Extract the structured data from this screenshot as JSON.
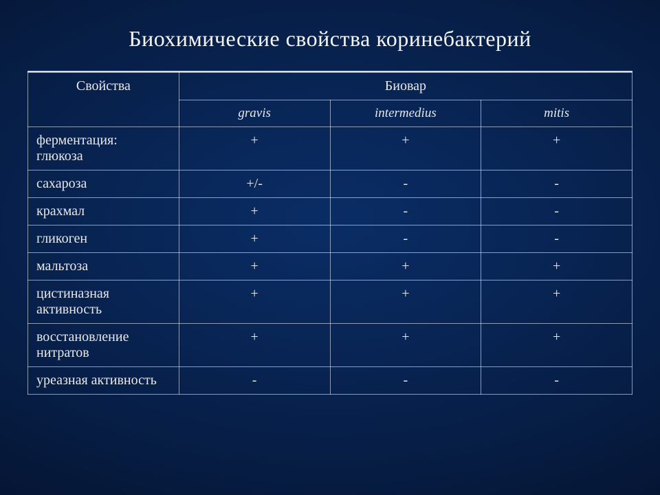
{
  "title": "Биохимические  свойства коринебактерий",
  "table": {
    "type": "table",
    "header": {
      "properties_label": "Свойства",
      "biovar_label": "Биовар",
      "biovars": [
        "gravis",
        "intermedius",
        "mitis"
      ]
    },
    "columns": [
      "Свойства",
      "gravis",
      "intermedius",
      "mitis"
    ],
    "column_widths_pct": [
      25,
      25,
      25,
      25
    ],
    "font_family": "serif",
    "font_size_pt": 15,
    "title_font_size_pt": 24,
    "border_color": "#a9b8cf",
    "text_color": "#e8e8e8",
    "background_gradient": {
      "type": "radial",
      "center": "#0a2d66",
      "mid": "#071f48",
      "edge": "#010510"
    },
    "rows": [
      {
        "label": "ферментация:\nглюкоза",
        "values": [
          "+",
          "+",
          "+"
        ]
      },
      {
        "label": "сахароза",
        "values": [
          "+/-",
          "-",
          "-"
        ]
      },
      {
        "label": "крахмал",
        "values": [
          "+",
          "-",
          "-"
        ]
      },
      {
        "label": "гликоген",
        "values": [
          "+",
          "-",
          "-"
        ]
      },
      {
        "label": "мальтоза",
        "values": [
          "+",
          "+",
          "+"
        ]
      },
      {
        "label": "цистиназная активность",
        "values": [
          "+",
          "+",
          "+"
        ]
      },
      {
        "label": "восстановление нитратов",
        "values": [
          "+",
          "+",
          "+"
        ]
      },
      {
        "label": "уреазная активность",
        "values": [
          "-",
          "-",
          "-"
        ]
      }
    ]
  }
}
